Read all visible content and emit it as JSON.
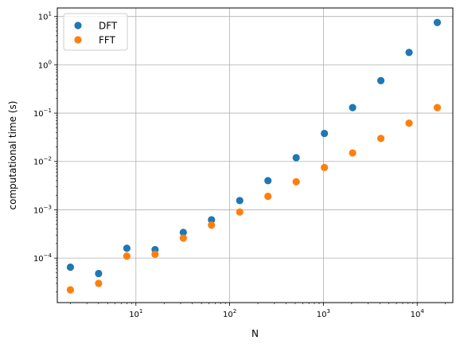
{
  "chart_data": {
    "type": "scatter",
    "xlabel": "N",
    "ylabel": "computational time (s)",
    "x_scale": "log",
    "y_scale": "log",
    "xlim": [
      1.45,
      24000
    ],
    "ylim": [
      1.2e-05,
      15
    ],
    "x_ticks": [
      {
        "value": 10,
        "base": "10",
        "exp": "1"
      },
      {
        "value": 100,
        "base": "10",
        "exp": "2"
      },
      {
        "value": 1000,
        "base": "10",
        "exp": "3"
      },
      {
        "value": 10000,
        "base": "10",
        "exp": "4"
      }
    ],
    "y_ticks": [
      {
        "value": 0.0001,
        "base": "10",
        "exp": "−4"
      },
      {
        "value": 0.001,
        "base": "10",
        "exp": "−3"
      },
      {
        "value": 0.01,
        "base": "10",
        "exp": "−2"
      },
      {
        "value": 0.1,
        "base": "10",
        "exp": "−1"
      },
      {
        "value": 1,
        "base": "10",
        "exp": "0"
      },
      {
        "value": 10,
        "base": "10",
        "exp": "1"
      }
    ],
    "grid": true,
    "legend_position": "top-left",
    "x": [
      2,
      4,
      8,
      16,
      32,
      64,
      128,
      256,
      512,
      1024,
      2048,
      4096,
      8192,
      16384
    ],
    "series": [
      {
        "name": "DFT",
        "color": "#1f77b4",
        "values": [
          6.5e-05,
          4.8e-05,
          0.00016,
          0.00015,
          0.00034,
          0.00062,
          0.00155,
          0.004,
          0.012,
          0.038,
          0.13,
          0.47,
          1.8,
          7.5
        ]
      },
      {
        "name": "FFT",
        "color": "#ff7f0e",
        "values": [
          2.2e-05,
          3e-05,
          0.00011,
          0.00012,
          0.00026,
          0.00048,
          0.0009,
          0.0019,
          0.0038,
          0.0075,
          0.015,
          0.03,
          0.062,
          0.13
        ]
      }
    ]
  }
}
